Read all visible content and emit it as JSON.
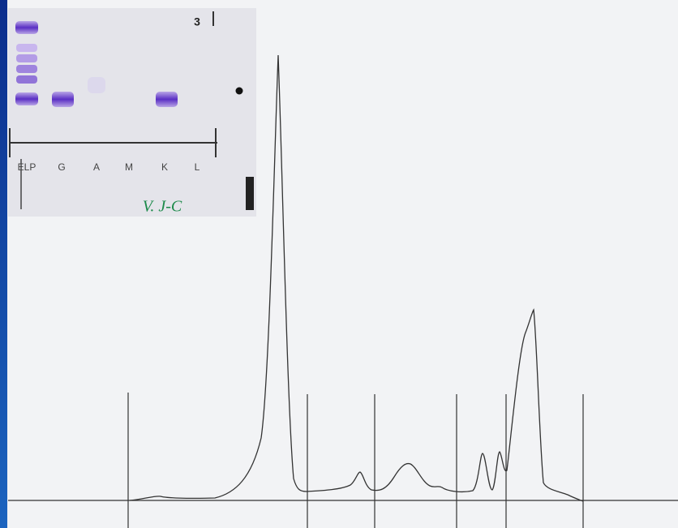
{
  "gel": {
    "number": "3",
    "lanes": [
      "ELP",
      "G",
      "A",
      "M",
      "K",
      "L"
    ],
    "handwriting": "V. J-C"
  }
}
